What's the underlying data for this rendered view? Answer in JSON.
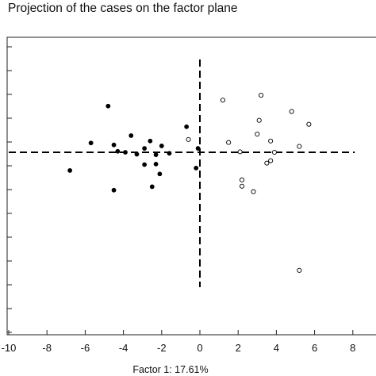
{
  "chart_data": {
    "type": "scatter",
    "title": "Projection of the cases on the factor plane",
    "xlabel": "Factor 1: 17.61%",
    "ylabel": "",
    "xlim": [
      -10,
      8
    ],
    "ylim": [
      -3.4,
      2.3
    ],
    "x_ticks": [
      "-10",
      "-8",
      "-6",
      "-4",
      "-2",
      "0",
      "2",
      "4",
      "6",
      "8"
    ],
    "x_tick_values": [
      -10,
      -8,
      -6,
      -4,
      -2,
      0,
      2,
      4,
      6,
      8
    ],
    "grid": false,
    "legend": "none",
    "reference_lines": {
      "x": 0,
      "y": 0,
      "style": "dashed"
    },
    "series": [
      {
        "marker": "filled-circle",
        "color": "#000000",
        "points": [
          [
            -4.8,
            0.94
          ],
          [
            -0.7,
            0.52
          ],
          [
            -3.6,
            0.34
          ],
          [
            -5.7,
            0.19
          ],
          [
            -4.5,
            0.15
          ],
          [
            -2.6,
            0.23
          ],
          [
            -2.0,
            0.13
          ],
          [
            -2.9,
            0.08
          ],
          [
            -4.3,
            0.02
          ],
          [
            -3.9,
            0.0
          ],
          [
            -1.6,
            -0.02
          ],
          [
            -2.3,
            -0.05
          ],
          [
            -0.1,
            0.08
          ],
          [
            -3.3,
            -0.04
          ],
          [
            -2.3,
            -0.24
          ],
          [
            -2.9,
            -0.25
          ],
          [
            -0.2,
            -0.32
          ],
          [
            -6.8,
            -0.37
          ],
          [
            -2.1,
            -0.44
          ],
          [
            -2.5,
            -0.7
          ],
          [
            -4.5,
            -0.77
          ]
        ]
      },
      {
        "marker": "open-circle",
        "color": "#000000",
        "points": [
          [
            3.2,
            1.16
          ],
          [
            1.2,
            1.06
          ],
          [
            4.8,
            0.83
          ],
          [
            3.1,
            0.65
          ],
          [
            5.7,
            0.57
          ],
          [
            3.0,
            0.37
          ],
          [
            3.7,
            0.23
          ],
          [
            1.5,
            0.2
          ],
          [
            5.2,
            0.12
          ],
          [
            -0.6,
            0.26
          ],
          [
            2.1,
            0.01
          ],
          [
            3.9,
            0.0
          ],
          [
            3.7,
            -0.17
          ],
          [
            3.5,
            -0.22
          ],
          [
            2.2,
            -0.56
          ],
          [
            2.2,
            -0.69
          ],
          [
            2.8,
            -0.8
          ],
          [
            5.2,
            -2.4
          ]
        ]
      }
    ]
  }
}
